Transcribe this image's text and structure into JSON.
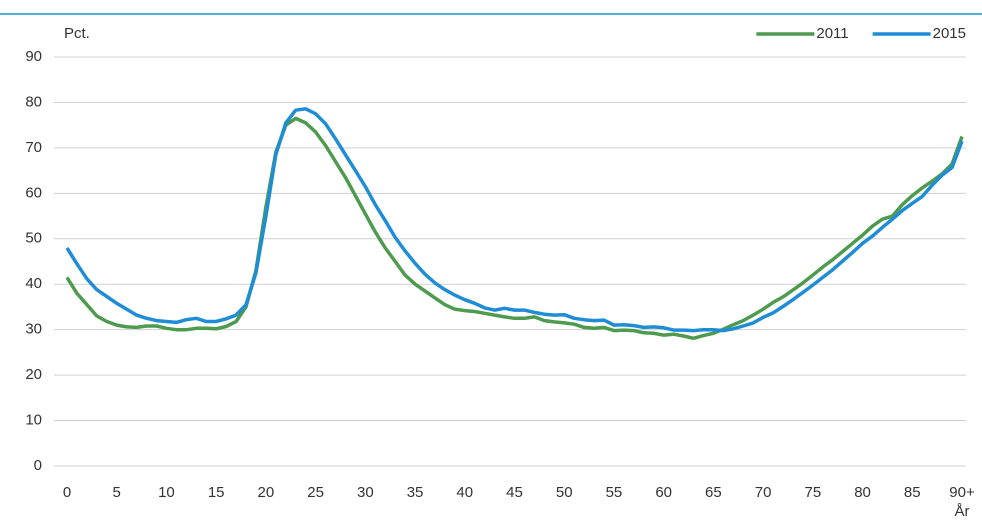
{
  "chart_data": {
    "type": "line",
    "y_label": "Pct.",
    "x_label": "År",
    "x": [
      0,
      1,
      2,
      3,
      4,
      5,
      6,
      7,
      8,
      9,
      10,
      11,
      12,
      13,
      14,
      15,
      16,
      17,
      18,
      19,
      20,
      21,
      22,
      23,
      24,
      25,
      26,
      27,
      28,
      29,
      30,
      31,
      32,
      33,
      34,
      35,
      36,
      37,
      38,
      39,
      40,
      41,
      42,
      43,
      44,
      45,
      46,
      47,
      48,
      49,
      50,
      51,
      52,
      53,
      54,
      55,
      56,
      57,
      58,
      59,
      60,
      61,
      62,
      63,
      64,
      65,
      66,
      67,
      68,
      69,
      70,
      71,
      72,
      73,
      74,
      75,
      76,
      77,
      78,
      79,
      80,
      81,
      82,
      83,
      84,
      85,
      86,
      87,
      88,
      89,
      90
    ],
    "series": [
      {
        "name": "2011",
        "color": "#4e9a4f",
        "values": [
          41.5,
          38,
          35.5,
          33,
          31.8,
          31,
          30.6,
          30.5,
          30.8,
          30.8,
          30.3,
          30,
          30,
          30.3,
          30.3,
          30.2,
          30.7,
          31.8,
          35,
          43,
          57,
          69,
          75,
          76.5,
          75.5,
          73.5,
          70.5,
          67,
          63.5,
          59.5,
          55.5,
          51.5,
          48,
          45,
          42,
          40,
          38.5,
          37,
          35.5,
          34.5,
          34.2,
          34,
          33.6,
          33.2,
          32.8,
          32.5,
          32.5,
          32.8,
          32,
          31.7,
          31.5,
          31.2,
          30.5,
          30.3,
          30.5,
          29.8,
          29.9,
          29.8,
          29.3,
          29.2,
          28.8,
          29,
          28.6,
          28.1,
          28.7,
          29.2,
          30.1,
          31.1,
          32,
          33.2,
          34.5,
          36,
          37.2,
          38.7,
          40.3,
          42,
          43.8,
          45.4,
          47.2,
          49,
          50.8,
          52.8,
          54.3,
          55,
          57.5,
          59.5,
          61.2,
          62.7,
          64.3,
          66.5,
          72.5
        ]
      },
      {
        "name": "2015",
        "color": "#1f8dd6",
        "values": [
          48,
          44.5,
          41.2,
          38.8,
          37.3,
          35.8,
          34.5,
          33.2,
          32.5,
          32,
          31.8,
          31.6,
          32.2,
          32.5,
          31.8,
          31.8,
          32.4,
          33.2,
          35.5,
          42.5,
          55,
          68.5,
          75.5,
          78.3,
          78.6,
          77.5,
          75.3,
          72,
          68.5,
          65,
          61.5,
          57.5,
          54,
          50.3,
          47.3,
          44.6,
          42.2,
          40.3,
          38.8,
          37.6,
          36.6,
          35.8,
          34.8,
          34.3,
          34.7,
          34.3,
          34.3,
          33.8,
          33.4,
          33.2,
          33.3,
          32.5,
          32.2,
          32,
          32.1,
          31,
          31.1,
          30.9,
          30.5,
          30.6,
          30.4,
          29.9,
          29.9,
          29.8,
          30,
          30,
          29.8,
          30.2,
          30.8,
          31.5,
          32.7,
          33.7,
          35.1,
          36.6,
          38.2,
          39.8,
          41.5,
          43.2,
          45.1,
          47,
          49,
          50.6,
          52.5,
          54.3,
          56.2,
          57.8,
          59.3,
          61.8,
          64,
          65.7,
          71.5
        ]
      }
    ],
    "xlim": [
      0,
      90
    ],
    "xticks": [
      0,
      5,
      10,
      15,
      20,
      25,
      30,
      35,
      40,
      45,
      50,
      55,
      60,
      65,
      70,
      75,
      80,
      85,
      {
        "value": 90,
        "label": "90+"
      }
    ],
    "ylim": [
      0,
      90
    ],
    "yticks": [
      0,
      10,
      20,
      30,
      40,
      50,
      60,
      70,
      80,
      90
    ],
    "grid": true,
    "legend": "upper right"
  }
}
